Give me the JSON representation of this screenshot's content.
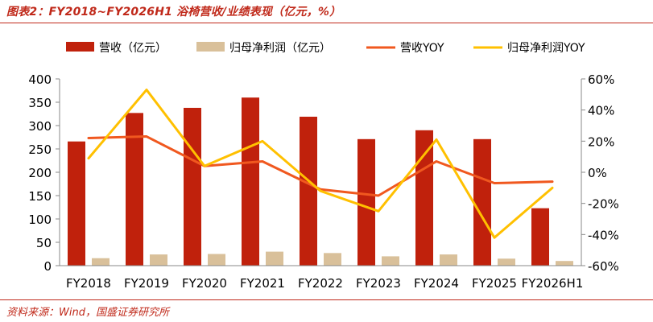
{
  "header": {
    "title": "图表2：FY2018~FY2026H1 浴椅营收/业绩表现（亿元，%）"
  },
  "footer": {
    "source": "资料来源：Wind，国盛证券研究所"
  },
  "colors": {
    "revenue_bar": "#c0210c",
    "profit_bar": "#d9c09a",
    "revenue_yoy_line": "#f0581f",
    "profit_yoy_line": "#ffc000",
    "accent": "#c0291a"
  },
  "chart_data": {
    "type": "bar",
    "title": "",
    "xlabel": "",
    "ylabel": "",
    "categories": [
      "FY2018",
      "FY2019",
      "FY2020",
      "FY2021",
      "FY2022",
      "FY2023",
      "FY2024",
      "FY2025",
      "FY2026H1"
    ],
    "ylim": [
      0,
      400
    ],
    "yticks": [
      0,
      50,
      100,
      150,
      200,
      250,
      300,
      350,
      400
    ],
    "ytick_labels": [
      "0",
      "50",
      "100",
      "150",
      "200",
      "250",
      "300",
      "350",
      "400"
    ],
    "y2lim": [
      -60,
      60
    ],
    "y2ticks": [
      -60,
      -40,
      -20,
      0,
      20,
      40,
      60
    ],
    "y2tick_labels": [
      "-60%",
      "-40%",
      "-20%",
      "0%",
      "20%",
      "40%",
      "60%"
    ],
    "grid": false,
    "legend_position": "top",
    "series": [
      {
        "name": "营收（亿元）",
        "type": "bar",
        "axis": "left",
        "values": [
          266,
          327,
          338,
          360,
          319,
          271,
          290,
          271,
          123
        ]
      },
      {
        "name": "归母净利润（亿元）",
        "type": "bar",
        "axis": "left",
        "values": [
          16,
          24,
          25,
          30,
          27,
          20,
          24,
          15,
          10
        ]
      },
      {
        "name": "营收YOY",
        "type": "line",
        "axis": "right",
        "values": [
          22,
          23,
          4,
          7,
          -11,
          -15,
          7,
          -7,
          -6
        ]
      },
      {
        "name": "归母净利润YOY",
        "type": "line",
        "axis": "right",
        "values": [
          9,
          53,
          4,
          20,
          -12,
          -25,
          21,
          -42,
          -10
        ]
      }
    ]
  }
}
